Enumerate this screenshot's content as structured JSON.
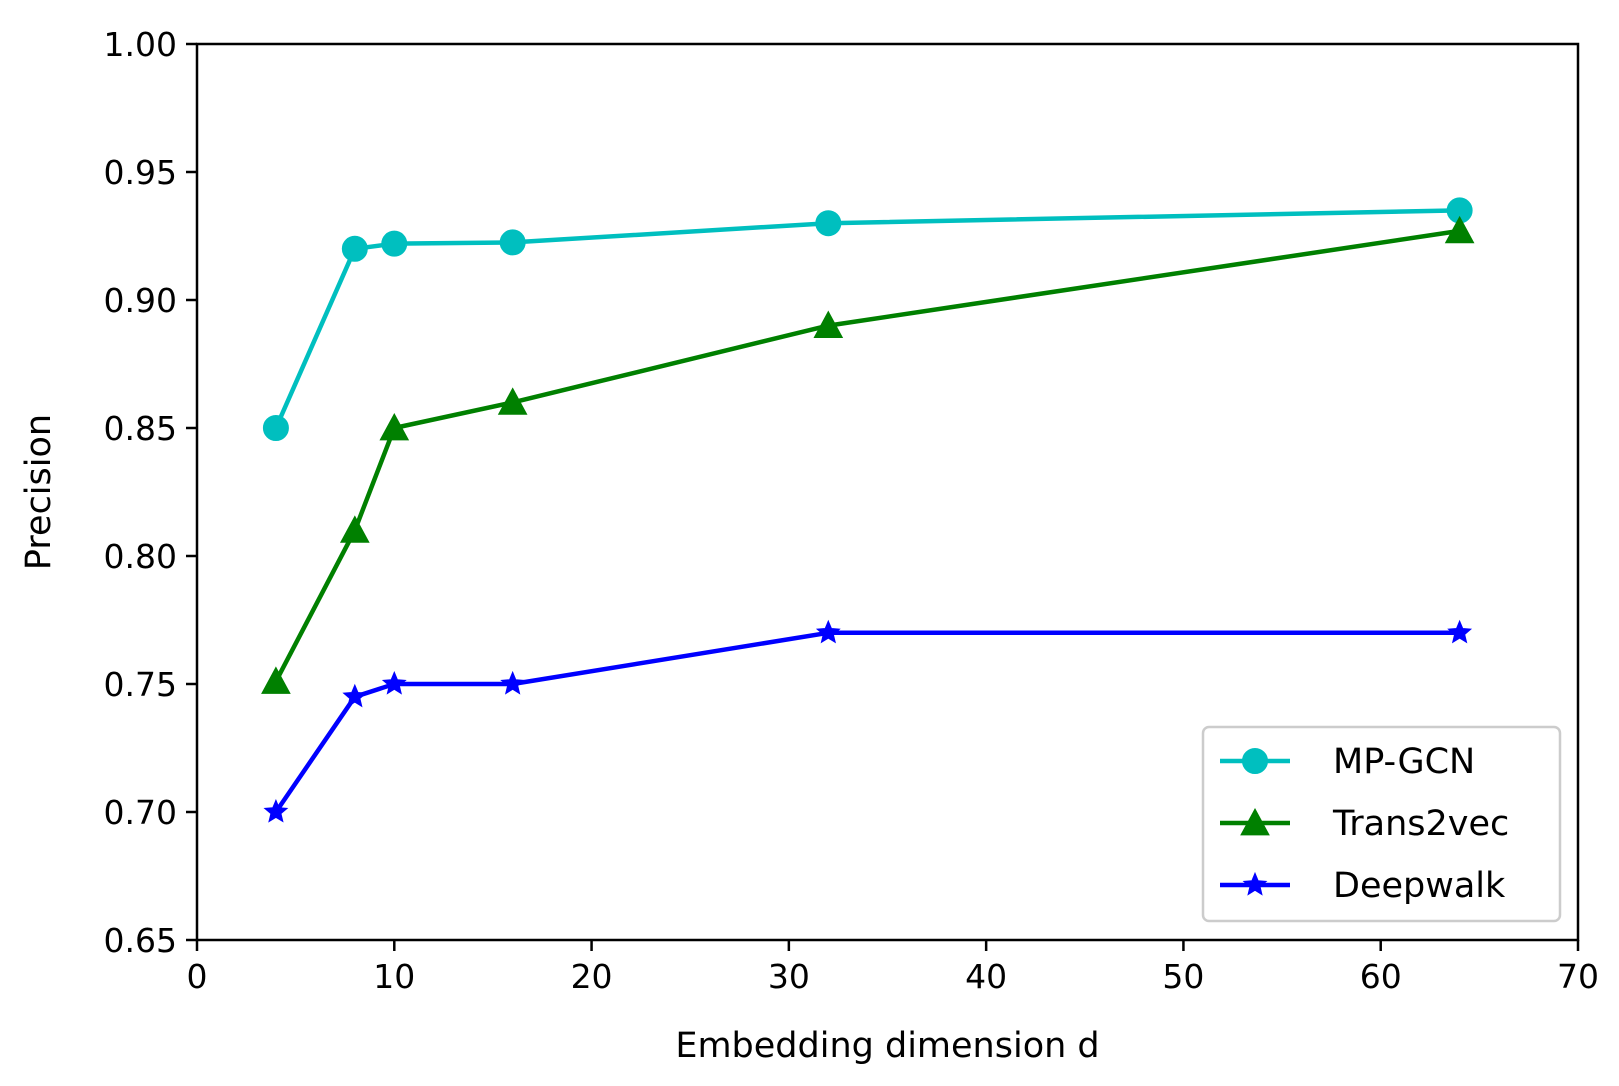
{
  "chart_data": {
    "type": "line",
    "title": "",
    "xlabel": "Embedding dimension d",
    "ylabel": "Precision",
    "xlim": [
      0,
      70
    ],
    "ylim": [
      0.65,
      1.0
    ],
    "xticks": [
      0,
      10,
      20,
      30,
      40,
      50,
      60,
      70
    ],
    "xtick_labels": [
      "0",
      "10",
      "20",
      "30",
      "40",
      "50",
      "60",
      "70"
    ],
    "yticks": [
      0.65,
      0.7,
      0.75,
      0.8,
      0.85,
      0.9,
      0.95,
      1.0
    ],
    "ytick_labels": [
      "0.65",
      "0.70",
      "0.75",
      "0.80",
      "0.85",
      "0.90",
      "0.95",
      "1.00"
    ],
    "grid": false,
    "legend_position": "bottom-right",
    "x": [
      4,
      8,
      10,
      16,
      32,
      64
    ],
    "series": [
      {
        "name": "MP-GCN",
        "color": "#00bfbf",
        "marker": "circle",
        "points": [
          [
            4,
            0.85
          ],
          [
            8,
            0.92
          ],
          [
            10,
            0.922
          ],
          [
            16,
            0.9225
          ],
          [
            32,
            0.93
          ],
          [
            64,
            0.935
          ]
        ]
      },
      {
        "name": "Trans2vec",
        "color": "#008000",
        "marker": "triangle",
        "points": [
          [
            4,
            0.751
          ],
          [
            8,
            0.81
          ],
          [
            10,
            0.85
          ],
          [
            16,
            0.86
          ],
          [
            32,
            0.89
          ],
          [
            64,
            0.927
          ]
        ]
      },
      {
        "name": "Deepwalk",
        "color": "#0000ff",
        "marker": "star",
        "points": [
          [
            4,
            0.7
          ],
          [
            8,
            0.745
          ],
          [
            10,
            0.75
          ],
          [
            16,
            0.75
          ],
          [
            32,
            0.77
          ],
          [
            64,
            0.77
          ]
        ]
      }
    ]
  }
}
